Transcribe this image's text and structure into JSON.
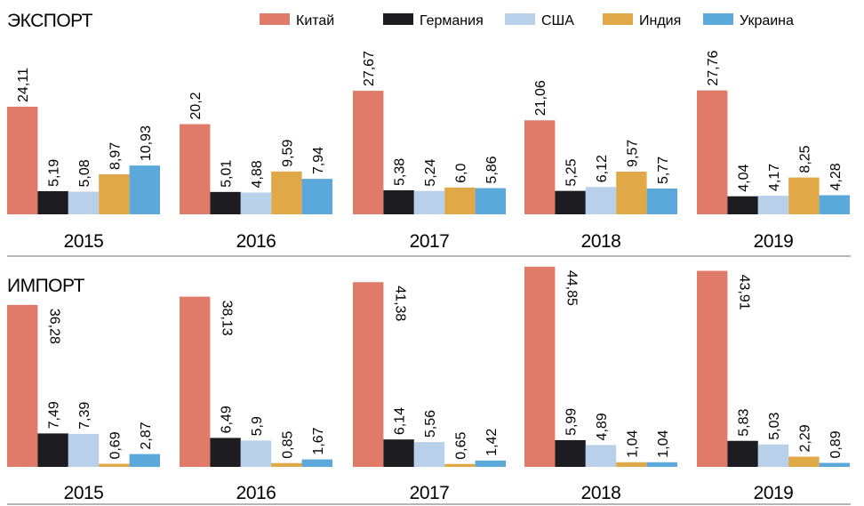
{
  "chart_data": [
    {
      "type": "bar",
      "title": "ЭКСПОРТ",
      "categories": [
        "2015",
        "2016",
        "2017",
        "2018",
        "2019"
      ],
      "legend_position": "top-right",
      "grid": false,
      "ylim": [
        0,
        45
      ],
      "series": [
        {
          "name": "Китай",
          "color": "#e07b69",
          "values": [
            24.11,
            20.2,
            27.67,
            21.06,
            27.76
          ],
          "labels": [
            "24,11",
            "20,2",
            "27,67",
            "21,06",
            "27,76"
          ]
        },
        {
          "name": "Германия",
          "color": "#1d1c21",
          "values": [
            5.19,
            5.01,
            5.38,
            5.25,
            4.04
          ],
          "labels": [
            "5,19",
            "5,01",
            "5,38",
            "5,25",
            "4,04"
          ]
        },
        {
          "name": "США",
          "color": "#b8d0ea",
          "values": [
            5.08,
            4.88,
            5.24,
            6.12,
            4.17
          ],
          "labels": [
            "5,08",
            "4,88",
            "5,24",
            "6,12",
            "4,17"
          ]
        },
        {
          "name": "Индия",
          "color": "#e0a847",
          "values": [
            8.97,
            9.59,
            6.0,
            9.57,
            8.25
          ],
          "labels": [
            "8,97",
            "9,59",
            "6,0",
            "9,57",
            "8,25"
          ]
        },
        {
          "name": "Украина",
          "color": "#5aa9da",
          "values": [
            10.93,
            7.94,
            5.86,
            5.77,
            4.28
          ],
          "labels": [
            "10,93",
            "7,94",
            "5,86",
            "5,77",
            "4,28"
          ]
        }
      ]
    },
    {
      "type": "bar",
      "title": "ИМПОРТ",
      "categories": [
        "2015",
        "2016",
        "2017",
        "2018",
        "2019"
      ],
      "grid": false,
      "ylim": [
        0,
        45
      ],
      "series": [
        {
          "name": "Китай",
          "color": "#e07b69",
          "values": [
            36.28,
            38.13,
            41.38,
            44.85,
            43.91
          ],
          "labels": [
            "36,28",
            "38,13",
            "41,38",
            "44,85",
            "43,91"
          ]
        },
        {
          "name": "Германия",
          "color": "#1d1c21",
          "values": [
            7.49,
            6.49,
            6.14,
            5.99,
            5.83
          ],
          "labels": [
            "7,49",
            "6,49",
            "6,14",
            "5,99",
            "5,83"
          ]
        },
        {
          "name": "США",
          "color": "#b8d0ea",
          "values": [
            7.39,
            5.9,
            5.56,
            4.89,
            5.03
          ],
          "labels": [
            "7,39",
            "5,9",
            "5,56",
            "4,89",
            "5,03"
          ]
        },
        {
          "name": "Индия",
          "color": "#e0a847",
          "values": [
            0.69,
            0.85,
            0.65,
            1.04,
            2.29
          ],
          "labels": [
            "0,69",
            "0,85",
            "0,65",
            "1,04",
            "2,29"
          ]
        },
        {
          "name": "Украина",
          "color": "#5aa9da",
          "values": [
            2.87,
            1.67,
            1.42,
            1.04,
            0.89
          ],
          "labels": [
            "2,87",
            "1,67",
            "1,42",
            "1,04",
            "0,89"
          ]
        }
      ]
    }
  ],
  "legend": {
    "items": [
      {
        "label": "Китай",
        "color": "#e07b69"
      },
      {
        "label": "Германия",
        "color": "#1d1c21"
      },
      {
        "label": "США",
        "color": "#b8d0ea"
      },
      {
        "label": "Индия",
        "color": "#e0a847"
      },
      {
        "label": "Украина",
        "color": "#5aa9da"
      }
    ]
  },
  "divider_color": "#b5b5b5"
}
